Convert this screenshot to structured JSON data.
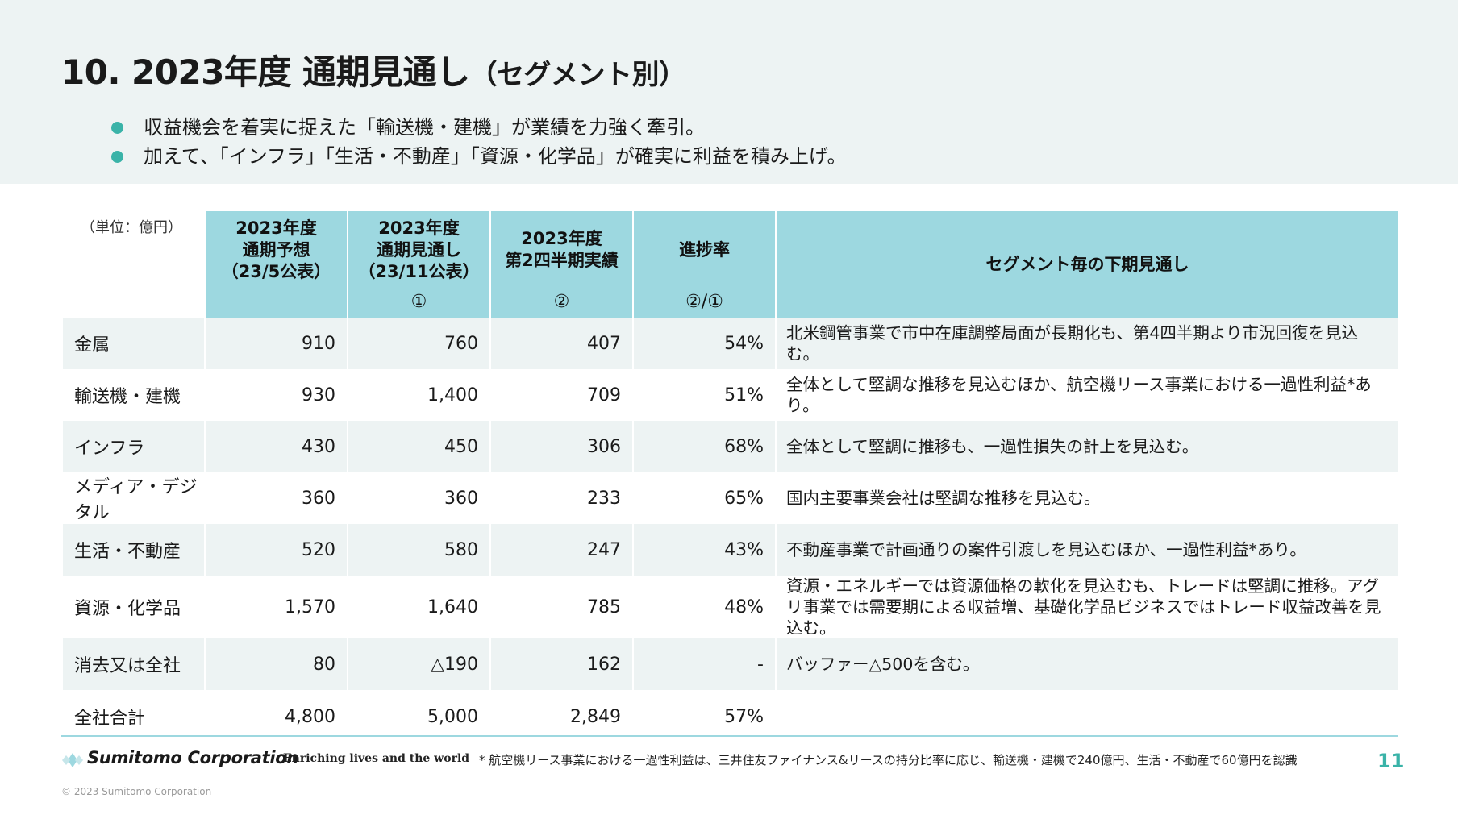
{
  "header": {
    "title": "10. 2023年度 通期見通し",
    "title_sub": "（セグメント別）",
    "bullets": [
      "収益機会を着実に捉えた「輸送機・建機」が業績を力強く牽引。",
      "加えて、「インフラ」「生活・不動産」「資源・化学品」が確実に利益を積み上げ。"
    ]
  },
  "table": {
    "unit_label": "（単位：億円）",
    "columns": [
      {
        "line1": "2023年度",
        "line2": "通期予想",
        "line3": "（23/5公表）",
        "marker": ""
      },
      {
        "line1": "2023年度",
        "line2": "通期見通し",
        "line3": "（23/11公表）",
        "marker": "①"
      },
      {
        "line1": "2023年度",
        "line2": "第2四半期実績",
        "line3": "",
        "marker": "②"
      },
      {
        "line1": "進捗率",
        "line2": "",
        "line3": "",
        "marker": "②/①"
      },
      {
        "line1": "セグメント毎の下期見通し",
        "line2": "",
        "line3": "",
        "marker": ""
      }
    ],
    "rows": [
      {
        "segment": "金属",
        "forecast_may": "910",
        "outlook_nov": "760",
        "q2_actual": "407",
        "progress": "54%",
        "outlook_text": "北米鋼管事業で市中在庫調整局面が長期化も、第4四半期より市況回復を見込む。"
      },
      {
        "segment": "輸送機・建機",
        "forecast_may": "930",
        "outlook_nov": "1,400",
        "q2_actual": "709",
        "progress": "51%",
        "outlook_text": "全体として堅調な推移を見込むほか、航空機リース事業における一過性利益*あり。"
      },
      {
        "segment": "インフラ",
        "forecast_may": "430",
        "outlook_nov": "450",
        "q2_actual": "306",
        "progress": "68%",
        "outlook_text": "全体として堅調に推移も、一過性損失の計上を見込む。"
      },
      {
        "segment": "メディア・デジタル",
        "forecast_may": "360",
        "outlook_nov": "360",
        "q2_actual": "233",
        "progress": "65%",
        "outlook_text": "国内主要事業会社は堅調な推移を見込む。"
      },
      {
        "segment": "生活・不動産",
        "forecast_may": "520",
        "outlook_nov": "580",
        "q2_actual": "247",
        "progress": "43%",
        "outlook_text": "不動産事業で計画通りの案件引渡しを見込むほか、一過性利益*あり。"
      },
      {
        "segment": "資源・化学品",
        "forecast_may": "1,570",
        "outlook_nov": "1,640",
        "q2_actual": "785",
        "progress": "48%",
        "outlook_text": "資源・エネルギーでは資源価格の軟化を見込むも、トレードは堅調に推移。アグリ事業では需要期による収益増、基礎化学品ビジネスではトレード収益改善を見込む。"
      },
      {
        "segment": "消去又は全社",
        "forecast_may": "80",
        "outlook_nov": "△190",
        "q2_actual": "162",
        "progress": "-",
        "outlook_text": "バッファー△500を含む。"
      },
      {
        "segment": "全社合計",
        "forecast_may": "4,800",
        "outlook_nov": "5,000",
        "q2_actual": "2,849",
        "progress": "57%",
        "outlook_text": ""
      }
    ]
  },
  "footer": {
    "brand": "Sumitomo Corporation",
    "tagline": "Enriching lives and the world",
    "footnote": "* 航空機リース事業における一過性利益は、三井住友ファイナンス&リースの持分比率に応じ、輸送機・建機で240億円、生活・不動産で60億円を認識",
    "page_number": "11",
    "copyright": "© 2023 Sumitomo Corporation"
  },
  "colors": {
    "accent_teal": "#3ab3a8",
    "header_cell": "#9dd8e0",
    "band_background": "#edf3f3"
  }
}
